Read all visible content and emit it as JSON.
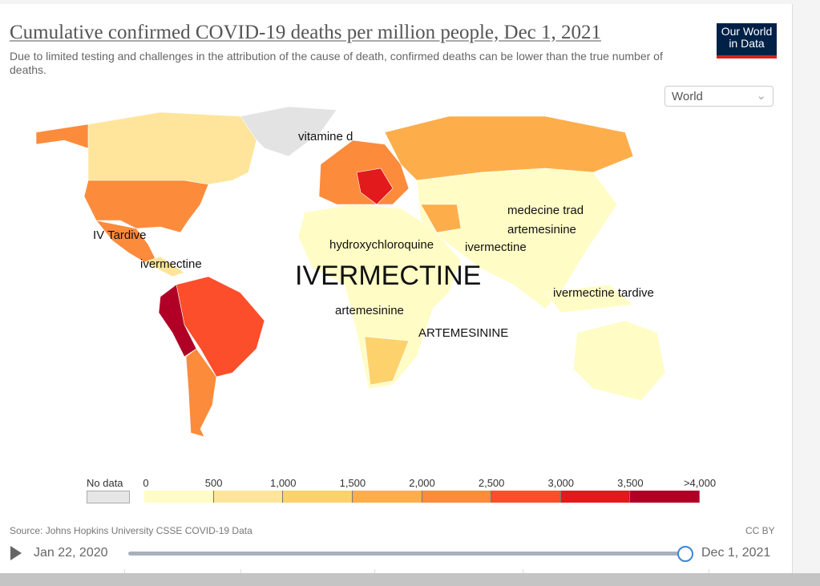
{
  "header": {
    "title": "Cumulative confirmed COVID-19 deaths per million people, Dec 1, 2021",
    "subtitle": "Due to limited testing and challenges in the attribution of the cause of death, confirmed deaths can be lower than the true number of deaths.",
    "logo": "Our World in Data",
    "region_select": "World"
  },
  "annotations": {
    "vitamine": "vitamine d",
    "iv_tardive": "IV Tardive",
    "ivermectine_am": "ivermectine",
    "hydroxy": "hydroxychloroquine",
    "ivermectine_me": "ivermectine",
    "big": "IVERMECTINE",
    "medecine": "medecine trad",
    "artemesinine_asia": "artemesinine",
    "ivermectine_tardive": "ivermectine tardive",
    "artemesinine_af": "artemesinine",
    "artemesinine_caps": "ARTEMESININE"
  },
  "legend": {
    "no_data": "No data",
    "ticks": [
      "0",
      "500",
      "1,000",
      "1,500",
      "2,000",
      "2,500",
      "3,000",
      "3,500",
      ">4,000"
    ],
    "colors": [
      "#fffcc6",
      "#fee59b",
      "#fdd16c",
      "#fdae4b",
      "#fc8b3c",
      "#fc4e2a",
      "#e31a1c",
      "#b10026"
    ],
    "no_data_color": "#e6e6e6"
  },
  "footer": {
    "source": "Source: Johns Hopkins University CSSE COVID-19 Data",
    "license": "CC BY"
  },
  "timeline": {
    "start": "Jan 22, 2020",
    "end": "Dec 1, 2021",
    "position": 1.0
  }
}
